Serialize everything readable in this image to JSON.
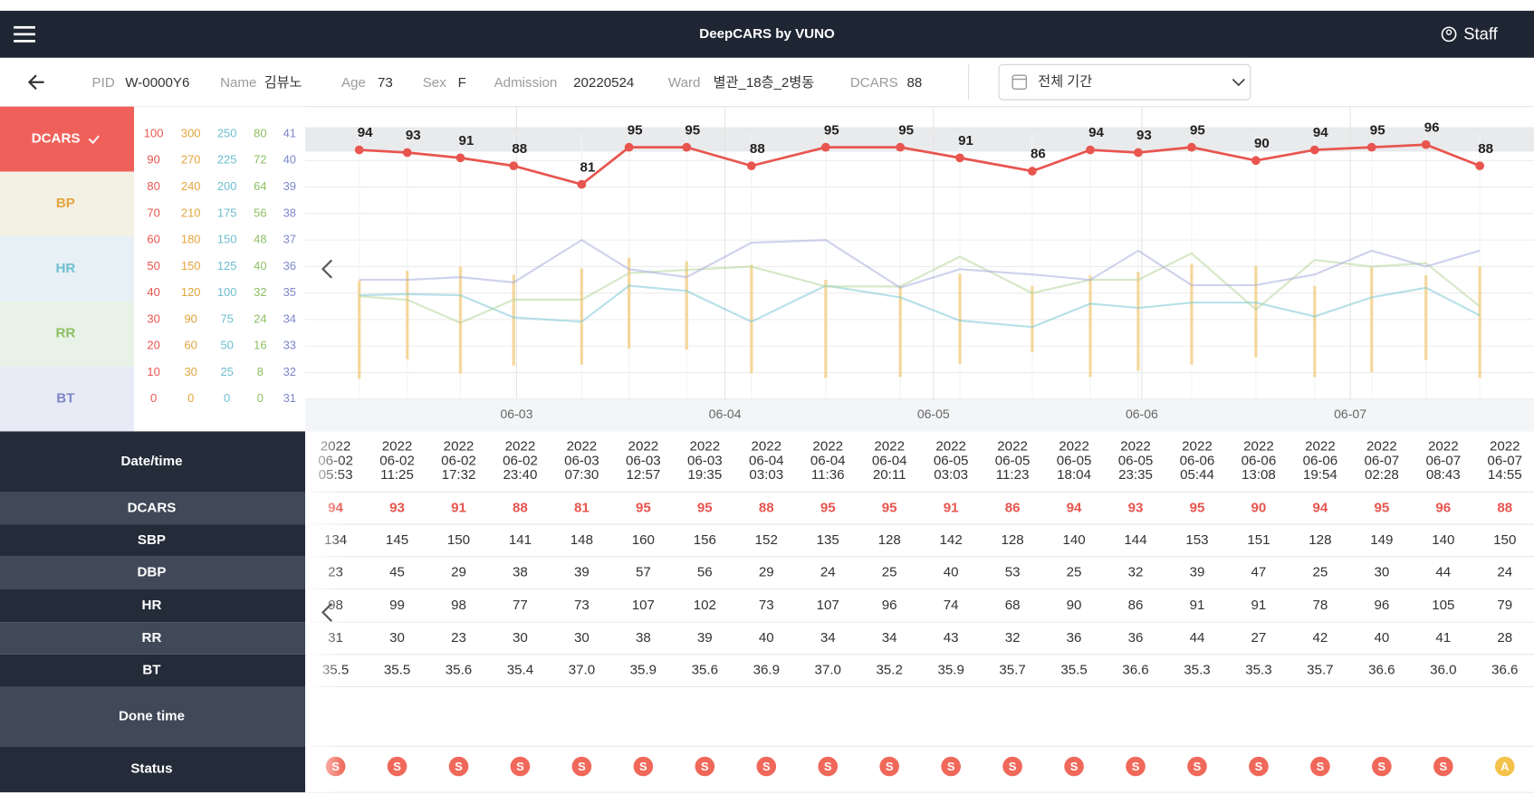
{
  "header": {
    "title": "DeepCARS by VUNO",
    "user": "Staff"
  },
  "patient": {
    "fields": [
      {
        "label": "PID",
        "value": "W-0000Y6"
      },
      {
        "label": "Name",
        "value": "김뷰노"
      },
      {
        "label": "Age",
        "value": "73"
      },
      {
        "label": "Sex",
        "value": "F"
      },
      {
        "label": "Admission",
        "value": "20220524"
      },
      {
        "label": "Ward",
        "value": "별관_18층_2병동"
      },
      {
        "label": "DCARS",
        "value": "88"
      }
    ]
  },
  "period_select": "전체 기간",
  "chart_data": {
    "type": "line",
    "x": [
      "06-02 05:53",
      "06-02 11:25",
      "06-02 17:32",
      "06-02 23:40",
      "06-03 07:30",
      "06-03 12:57",
      "06-03 19:35",
      "06-04 03:03",
      "06-04 11:36",
      "06-04 20:11",
      "06-05 03:03",
      "06-05 11:23",
      "06-05 18:04",
      "06-05 23:35",
      "06-06 05:44",
      "06-06 13:08",
      "06-06 19:54",
      "06-07 02:28",
      "06-07 08:43",
      "06-07 14:55"
    ],
    "xlim": [
      "06-01 23:40",
      "06-07 21:10"
    ],
    "xticks": [
      "06-03",
      "06-04",
      "06-05",
      "06-06",
      "06-07"
    ],
    "grid": true,
    "selected_axis": 0,
    "axes": [
      {
        "name": "DCARS",
        "color": "#e8554e",
        "ylim": [
          0,
          100
        ],
        "yticks": [
          0,
          10,
          20,
          30,
          40,
          50,
          60,
          70,
          80,
          90,
          100
        ]
      },
      {
        "name": "BP",
        "color": "#e3a53c",
        "ylim": [
          0,
          300
        ],
        "yticks": [
          0,
          30,
          60,
          90,
          120,
          150,
          180,
          210,
          240,
          270,
          300
        ]
      },
      {
        "name": "HR",
        "color": "#6dbfcf",
        "ylim": [
          0,
          250
        ],
        "yticks": [
          0,
          25,
          50,
          75,
          100,
          125,
          150,
          175,
          200,
          225,
          250
        ]
      },
      {
        "name": "RR",
        "color": "#8cbf62",
        "ylim": [
          0,
          80
        ],
        "yticks": [
          0,
          8,
          16,
          24,
          32,
          40,
          48,
          56,
          64,
          72,
          80
        ]
      },
      {
        "name": "BT",
        "color": "#7d87c9",
        "ylim": [
          31,
          41
        ],
        "yticks": [
          31,
          32,
          33,
          34,
          35,
          36,
          37,
          38,
          39,
          40,
          41
        ]
      }
    ],
    "series": [
      {
        "axis": 0,
        "mark": "line",
        "color": "#e8554e",
        "opacity": 1,
        "labels": true,
        "values": [
          94,
          93,
          91,
          88,
          81,
          95,
          95,
          88,
          95,
          95,
          91,
          86,
          94,
          93,
          95,
          90,
          94,
          95,
          96,
          88
        ]
      },
      {
        "axis": 1,
        "mark": "range",
        "color": "#f3cf86",
        "opacity": 0.8,
        "values": [
          134,
          145,
          150,
          141,
          148,
          160,
          156,
          152,
          135,
          128,
          142,
          128,
          140,
          144,
          153,
          151,
          128,
          149,
          140,
          150
        ]
      },
      {
        "axis": 1,
        "mark": "range",
        "color": "#f3cf86",
        "opacity": 0.8,
        "values": [
          23,
          45,
          29,
          38,
          39,
          57,
          56,
          29,
          24,
          25,
          40,
          53,
          25,
          32,
          39,
          47,
          25,
          30,
          44,
          24
        ]
      },
      {
        "axis": 2,
        "mark": "line",
        "color": "#7cc8d6",
        "opacity": 0.55,
        "values": [
          98,
          99,
          98,
          77,
          73,
          107,
          102,
          73,
          107,
          96,
          74,
          68,
          90,
          86,
          91,
          91,
          78,
          96,
          105,
          79
        ]
      },
      {
        "axis": 3,
        "mark": "line",
        "color": "#b5d69a",
        "opacity": 0.55,
        "values": [
          31,
          30,
          23,
          30,
          30,
          38,
          39,
          40,
          34,
          34,
          43,
          32,
          36,
          36,
          44,
          27,
          42,
          40,
          41,
          28
        ]
      },
      {
        "axis": 4,
        "mark": "line",
        "color": "#a7addf",
        "opacity": 0.55,
        "values": [
          35.5,
          35.5,
          35.6,
          35.4,
          37.0,
          35.9,
          35.6,
          36.9,
          37.0,
          35.2,
          35.9,
          35.7,
          35.5,
          36.6,
          35.3,
          35.3,
          35.7,
          36.6,
          36.0,
          36.6
        ],
        "value_labels": [
          "35.5",
          "35.5",
          "35.6",
          "35.4",
          "37.0",
          "35.9",
          "35.6",
          "36.9",
          "37.0",
          "35.2",
          "35.9",
          "35.7",
          "35.5",
          "36.6",
          "35.3",
          "35.3",
          "35.7",
          "36.6",
          "36.0",
          "36.6"
        ]
      }
    ]
  },
  "table": {
    "row_headers": [
      "Date/time",
      "DCARS",
      "SBP",
      "DBP",
      "HR",
      "RR",
      "BT",
      "Done time",
      "Status"
    ],
    "datetimes": [
      [
        "2022",
        "06-02",
        "05:53"
      ],
      [
        "2022",
        "06-02",
        "11:25"
      ],
      [
        "2022",
        "06-02",
        "17:32"
      ],
      [
        "2022",
        "06-02",
        "23:40"
      ],
      [
        "2022",
        "06-03",
        "07:30"
      ],
      [
        "2022",
        "06-03",
        "12:57"
      ],
      [
        "2022",
        "06-03",
        "19:35"
      ],
      [
        "2022",
        "06-04",
        "03:03"
      ],
      [
        "2022",
        "06-04",
        "11:36"
      ],
      [
        "2022",
        "06-04",
        "20:11"
      ],
      [
        "2022",
        "06-05",
        "03:03"
      ],
      [
        "2022",
        "06-05",
        "11:23"
      ],
      [
        "2022",
        "06-05",
        "18:04"
      ],
      [
        "2022",
        "06-05",
        "23:35"
      ],
      [
        "2022",
        "06-06",
        "05:44"
      ],
      [
        "2022",
        "06-06",
        "13:08"
      ],
      [
        "2022",
        "06-06",
        "19:54"
      ],
      [
        "2022",
        "06-07",
        "02:28"
      ],
      [
        "2022",
        "06-07",
        "08:43"
      ],
      [
        "2022",
        "06-07",
        "14:55"
      ]
    ],
    "status": [
      "S",
      "S",
      "S",
      "S",
      "S",
      "S",
      "S",
      "S",
      "S",
      "S",
      "S",
      "S",
      "S",
      "S",
      "S",
      "S",
      "S",
      "S",
      "S",
      "A"
    ],
    "status_colors": {
      "S": "#f0685a",
      "A": "#f4c24a"
    }
  }
}
